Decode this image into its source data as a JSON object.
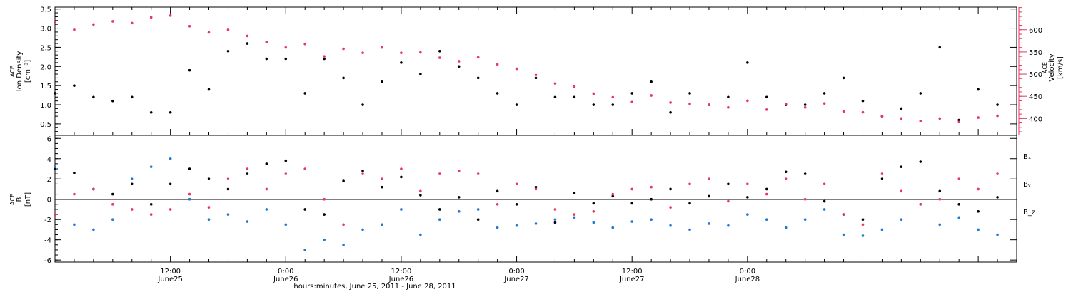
{
  "colors": {
    "black": "#000000",
    "red": "#e8365d",
    "blue": "#1f78d2"
  },
  "chart_data": [
    {
      "type": "scatter",
      "panel": "top",
      "ylabel_left": [
        "ACE",
        "Ion Density",
        "[cm⁻³]"
      ],
      "ylabel_right": [
        "ACE",
        "Velocity",
        "[km/s]"
      ],
      "ylim_left": [
        0.2,
        3.55
      ],
      "ylim_right": [
        362,
        651
      ],
      "yticks_left": [
        "0.5",
        "1.0",
        "1.5",
        "2.0",
        "2.5",
        "3.0",
        "3.5"
      ],
      "yticks_right": [
        "400",
        "450",
        "500",
        "550",
        "600"
      ],
      "x_hours_range": [
        0,
        100
      ],
      "series": [
        {
          "color": "black",
          "x_hours": [
            0,
            2,
            4,
            6,
            8,
            10,
            12,
            14,
            16,
            18,
            20,
            22,
            24,
            26,
            28,
            30,
            32,
            34,
            36,
            38,
            40,
            42,
            44,
            46,
            48,
            50,
            52,
            54,
            56,
            58,
            60,
            62,
            64,
            66,
            68,
            70,
            72,
            74,
            76,
            78,
            80,
            82,
            84,
            86,
            88,
            90,
            92,
            94,
            96,
            98
          ],
          "values": [
            1.3,
            1.5,
            1.2,
            1.1,
            1.2,
            0.8,
            0.8,
            1.9,
            1.4,
            2.4,
            2.6,
            2.2,
            2.2,
            1.3,
            2.2,
            1.7,
            1.0,
            1.6,
            2.1,
            1.8,
            2.4,
            2.0,
            1.7,
            1.3,
            1.0,
            1.7,
            1.2,
            1.2,
            1.0,
            1.0,
            1.3,
            1.6,
            0.8,
            1.3,
            1.0,
            1.2,
            2.1,
            1.2,
            1.0,
            1.0,
            1.3,
            1.7,
            1.1,
            0.7,
            0.9,
            1.3,
            2.5,
            0.6,
            1.4,
            1.0
          ]
        },
        {
          "color": "red",
          "x_hours": [
            0,
            2,
            4,
            6,
            8,
            10,
            12,
            14,
            16,
            18,
            20,
            22,
            24,
            26,
            28,
            30,
            32,
            34,
            36,
            38,
            40,
            42,
            44,
            46,
            48,
            50,
            52,
            54,
            56,
            58,
            60,
            62,
            64,
            66,
            68,
            70,
            72,
            74,
            76,
            78,
            80,
            82,
            84,
            86,
            88,
            90,
            92,
            94,
            96,
            98
          ],
          "values": [
            618,
            600,
            612,
            619,
            615,
            628,
            632,
            608,
            594,
            600,
            586,
            572,
            560,
            568,
            540,
            557,
            548,
            560,
            548,
            549,
            537,
            529,
            538,
            522,
            512,
            498,
            479,
            472,
            456,
            448,
            437,
            452,
            436,
            433,
            431,
            425,
            440,
            420,
            433,
            425,
            434,
            416,
            414,
            405,
            400,
            394,
            400,
            392,
            402,
            406
          ]
        }
      ]
    },
    {
      "type": "scatter",
      "panel": "bottom",
      "ylabel_left": [
        "ACE",
        "B",
        "[nT]"
      ],
      "ylim": [
        -6.2,
        6.3
      ],
      "yticks": [
        "-6",
        "-4",
        "-2",
        "0",
        "2",
        "4",
        "6"
      ],
      "x_hours_range": [
        0,
        100
      ],
      "legend_position": "right",
      "series": [
        {
          "name": "Bₓ",
          "color": "black",
          "x_hours": [
            0,
            2,
            4,
            6,
            8,
            10,
            12,
            14,
            16,
            18,
            20,
            22,
            24,
            26,
            28,
            30,
            32,
            34,
            36,
            38,
            40,
            42,
            44,
            46,
            48,
            50,
            52,
            54,
            56,
            58,
            60,
            62,
            64,
            66,
            68,
            70,
            72,
            74,
            76,
            78,
            80,
            82,
            84,
            86,
            88,
            90,
            92,
            94,
            96,
            98
          ],
          "values": [
            3.0,
            2.6,
            1.0,
            0.5,
            1.5,
            -0.5,
            1.5,
            3.0,
            2.0,
            1.0,
            2.5,
            3.5,
            3.8,
            -1.0,
            -1.5,
            1.8,
            2.8,
            1.2,
            2.2,
            0.4,
            -1.0,
            0.2,
            -2.0,
            0.8,
            -0.5,
            1.2,
            -2.3,
            0.6,
            -0.4,
            0.3,
            -0.4,
            0.0,
            1.0,
            -0.4,
            0.3,
            1.5,
            0.2,
            1.0,
            2.7,
            2.5,
            -0.2,
            -1.5,
            -2.0,
            2.0,
            3.2,
            3.7,
            0.8,
            -0.5,
            -1.2,
            0.2
          ]
        },
        {
          "name": "Bᵧ",
          "color": "blue",
          "x_hours": [
            0,
            2,
            4,
            6,
            8,
            10,
            12,
            14,
            16,
            18,
            20,
            22,
            24,
            26,
            28,
            30,
            32,
            34,
            36,
            38,
            40,
            42,
            44,
            46,
            48,
            50,
            52,
            54,
            56,
            58,
            60,
            62,
            64,
            66,
            68,
            70,
            72,
            74,
            76,
            78,
            80,
            82,
            84,
            86,
            88,
            90,
            92,
            94,
            96,
            98
          ],
          "values": [
            3.2,
            -2.5,
            -3.0,
            -2.0,
            2.0,
            3.2,
            4.0,
            0.0,
            -2.0,
            -1.5,
            -2.2,
            -1.0,
            -2.5,
            -5.0,
            -4.0,
            -4.5,
            -3.0,
            -2.5,
            -1.0,
            -3.5,
            -2.0,
            -1.2,
            -1.0,
            -2.8,
            -2.6,
            -2.4,
            -2.0,
            -1.8,
            -2.3,
            -2.8,
            -2.2,
            -2.0,
            -2.6,
            -3.0,
            -2.4,
            -2.6,
            -1.5,
            -2.0,
            -2.8,
            -2.0,
            -1.0,
            -3.5,
            -3.6,
            -3.0,
            -2.0,
            -0.5,
            -2.5,
            -1.8,
            -3.0,
            -3.5
          ]
        },
        {
          "name": "B_z",
          "color": "red",
          "x_hours": [
            0,
            2,
            4,
            6,
            8,
            10,
            12,
            14,
            16,
            18,
            20,
            22,
            24,
            26,
            28,
            30,
            32,
            34,
            36,
            38,
            40,
            42,
            44,
            46,
            48,
            50,
            52,
            54,
            56,
            58,
            60,
            62,
            64,
            66,
            68,
            70,
            72,
            74,
            76,
            78,
            80,
            82,
            84,
            86,
            88,
            90,
            92,
            94,
            96,
            98
          ],
          "values": [
            -1.5,
            0.5,
            1.0,
            -0.5,
            -1.0,
            -1.5,
            -1.0,
            0.5,
            -0.8,
            2.0,
            3.0,
            1.0,
            2.5,
            3.0,
            0.0,
            -2.5,
            2.5,
            2.0,
            3.0,
            0.8,
            2.5,
            2.8,
            2.5,
            -0.5,
            1.5,
            1.0,
            -1.0,
            -1.5,
            -1.2,
            0.5,
            1.0,
            1.2,
            -0.8,
            1.5,
            2.0,
            -0.2,
            1.5,
            0.5,
            2.0,
            0.0,
            1.5,
            -1.5,
            -2.5,
            2.5,
            0.8,
            -0.5,
            0.0,
            2.0,
            1.0,
            2.5
          ]
        }
      ]
    }
  ],
  "x_axis": {
    "ticks": [
      {
        "hours": 12,
        "time": "12:00",
        "date": "June25"
      },
      {
        "hours": 24,
        "time": "0:00",
        "date": "June26"
      },
      {
        "hours": 36,
        "time": "12:00",
        "date": "June26"
      },
      {
        "hours": 48,
        "time": "0:00",
        "date": "June27"
      },
      {
        "hours": 60,
        "time": "12:00",
        "date": "June27"
      },
      {
        "hours": 72,
        "time": "0:00",
        "date": "June28"
      }
    ],
    "title": "hours:minutes, June 25, 2011 - June 28, 2011"
  }
}
